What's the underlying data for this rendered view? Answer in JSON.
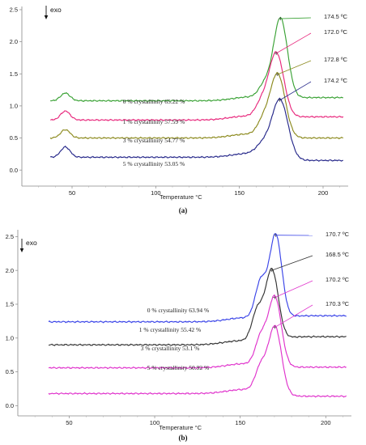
{
  "chart_data": [
    {
      "type": "line",
      "panel_label": "(a)",
      "xlabel": "Temperature  °C",
      "xlim": [
        20,
        215
      ],
      "ylim": [
        -0.25,
        2.55
      ],
      "xticks": [
        "50",
        "100",
        "150",
        "200"
      ],
      "yticks": [
        "0.0",
        "0.5",
        "1.0",
        "1.5",
        "2.0",
        "2.5"
      ],
      "grid": false,
      "exo_label": "exo",
      "series": [
        {
          "color": "#3aa235",
          "peak_label": "174.5 ºC",
          "crystallinity_label": "0 % crystallinity 65.22 %",
          "baseline": 1.08,
          "tail": 1.13,
          "small_peak": {
            "x": 46,
            "h": 0.12
          },
          "main_peak": {
            "x": 174.5,
            "value": 2.36,
            "width": 4.2
          },
          "shoulder": {
            "x": 165,
            "h": 0.2,
            "width": 3.5
          },
          "x": [
            37,
            50,
            100,
            150,
            160,
            170,
            174.5,
            180,
            190,
            212
          ],
          "y": [
            1.05,
            1.08,
            1.09,
            1.12,
            1.3,
            1.75,
            2.36,
            1.2,
            1.13,
            1.13
          ]
        },
        {
          "color": "#e8297d",
          "peak_label": "172.0 ºC",
          "crystallinity_label": "1 % crystallinity 57.59 %",
          "baseline": 0.78,
          "tail": 0.83,
          "small_peak": {
            "x": 46,
            "h": 0.14
          },
          "main_peak": {
            "x": 172.0,
            "value": 1.82,
            "width": 4.5
          },
          "shoulder": {
            "x": 163,
            "h": 0.2,
            "width": 3.5
          },
          "x": [
            37,
            50,
            100,
            150,
            160,
            168,
            172.0,
            178,
            190,
            212
          ],
          "y": [
            0.74,
            0.79,
            0.8,
            0.85,
            1.0,
            1.45,
            1.82,
            0.9,
            0.83,
            0.83
          ]
        },
        {
          "color": "#8c8a1e",
          "peak_label": "172.8 ºC",
          "crystallinity_label": "3 % crystallinity 54.77 %",
          "baseline": 0.5,
          "tail": 0.5,
          "small_peak": {
            "x": 46,
            "h": 0.13
          },
          "main_peak": {
            "x": 172.8,
            "value": 1.49,
            "width": 4.5
          },
          "shoulder": {
            "x": 164,
            "h": 0.2,
            "width": 3.5
          },
          "x": [
            37,
            50,
            100,
            150,
            160,
            168,
            172.8,
            178,
            190,
            212
          ],
          "y": [
            0.52,
            0.52,
            0.53,
            0.56,
            0.7,
            1.15,
            1.49,
            0.6,
            0.5,
            0.5
          ]
        },
        {
          "color": "#26288a",
          "peak_label": "174.2 ºC",
          "crystallinity_label": "5 % crystallinity 53.05 %",
          "baseline": 0.2,
          "tail": 0.15,
          "small_peak": {
            "x": 46,
            "h": 0.16
          },
          "main_peak": {
            "x": 174.2,
            "value": 1.09,
            "width": 4.8
          },
          "shoulder": {
            "x": 164,
            "h": 0.15,
            "width": 4
          },
          "x": [
            37,
            50,
            100,
            150,
            160,
            168,
            174.2,
            180,
            190,
            212
          ],
          "y": [
            0.27,
            0.25,
            0.2,
            0.26,
            0.4,
            0.75,
            1.09,
            0.25,
            0.15,
            0.15
          ]
        }
      ]
    },
    {
      "type": "line",
      "panel_label": "(b)",
      "xlabel": "Temperature  °C",
      "xlim": [
        20,
        215
      ],
      "ylim": [
        -0.15,
        2.6
      ],
      "xticks": [
        "50",
        "100",
        "150",
        "200"
      ],
      "yticks": [
        "0.0",
        "0.5",
        "1.0",
        "1.5",
        "2.0",
        "2.5"
      ],
      "grid": false,
      "exo_label": "exo",
      "series": [
        {
          "color": "#3a44e8",
          "peak_label": "170.7 ºC",
          "crystallinity_label": "0 % crystallinity 63.94 %",
          "baseline": 1.24,
          "tail": 1.33,
          "small_peak": null,
          "main_peak": {
            "x": 170.7,
            "value": 2.52,
            "width": 3.6
          },
          "shoulder": {
            "x": 162,
            "h": 0.55,
            "width": 3.2
          },
          "x": [
            38,
            100,
            150,
            160,
            165,
            170.7,
            176,
            190,
            212
          ],
          "y": [
            1.24,
            1.26,
            1.33,
            1.55,
            1.8,
            2.52,
            1.4,
            1.33,
            1.33
          ]
        },
        {
          "color": "#333333",
          "peak_label": "168.5 ºC",
          "crystallinity_label": "1 % crystallinity 55.42 %",
          "baseline": 0.9,
          "tail": 1.02,
          "small_peak": null,
          "main_peak": {
            "x": 168.5,
            "value": 2.0,
            "width": 3.8
          },
          "shoulder": {
            "x": 160,
            "h": 0.45,
            "width": 3.2
          },
          "x": [
            38,
            100,
            150,
            160,
            165,
            168.5,
            175,
            190,
            212
          ],
          "y": [
            0.9,
            0.93,
            1.0,
            1.25,
            1.45,
            2.0,
            1.1,
            1.02,
            1.02
          ]
        },
        {
          "color": "#e033cc",
          "peak_label": "170.2 ºC",
          "crystallinity_label": "3 % crystallinity 53.1 %",
          "baseline": 0.56,
          "tail": 0.57,
          "small_peak": null,
          "main_peak": {
            "x": 170.2,
            "value": 1.6,
            "width": 3.8
          },
          "shoulder": {
            "x": 162,
            "h": 0.4,
            "width": 3.2
          },
          "x": [
            38,
            100,
            150,
            160,
            165,
            170.2,
            176,
            190,
            212
          ],
          "y": [
            0.56,
            0.57,
            0.62,
            0.85,
            1.05,
            1.6,
            0.66,
            0.57,
            0.57
          ]
        },
        {
          "color": "#e033cc",
          "peak_label": "170.3 ºC",
          "crystallinity_label": "5 % crystallinity 50.92 %",
          "baseline": 0.18,
          "tail": 0.14,
          "small_peak": null,
          "main_peak": {
            "x": 170.3,
            "value": 1.16,
            "width": 3.8
          },
          "shoulder": {
            "x": 162,
            "h": 0.35,
            "width": 3.2
          },
          "x": [
            38,
            100,
            150,
            160,
            165,
            170.3,
            176,
            190,
            212
          ],
          "y": [
            0.18,
            0.18,
            0.24,
            0.45,
            0.65,
            1.16,
            0.25,
            0.14,
            0.14
          ]
        }
      ]
    }
  ]
}
